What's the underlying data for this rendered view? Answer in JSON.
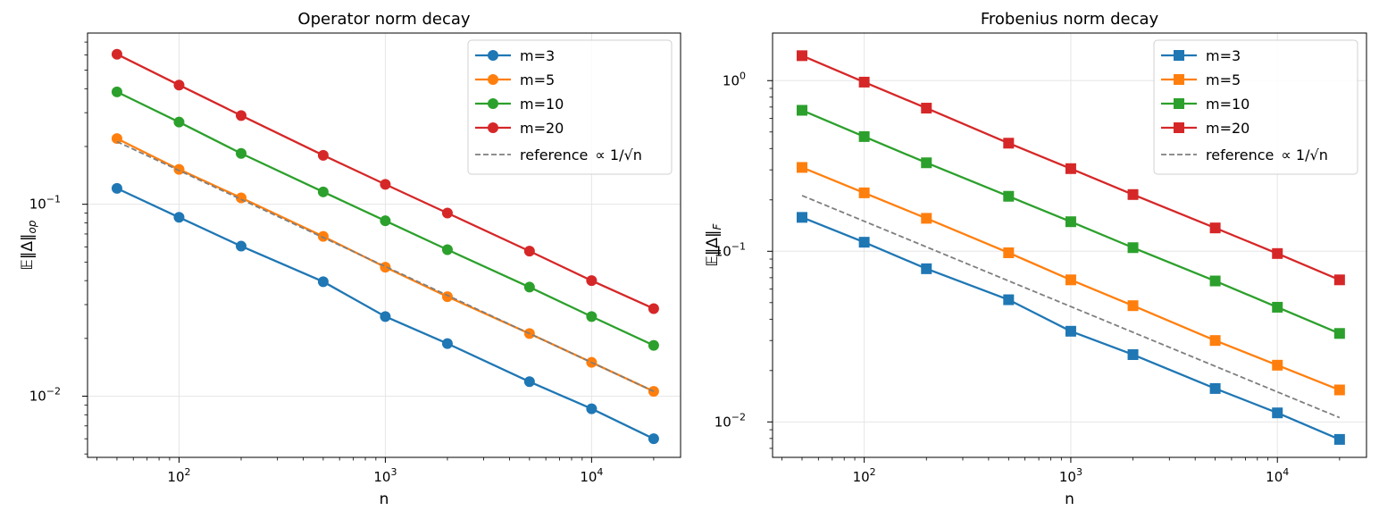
{
  "chart_data": [
    {
      "type": "line",
      "title": "Operator norm decay",
      "xlabel": "n",
      "ylabel": "𝔼‖Δ‖",
      "ylabel_sub": "op",
      "xscale": "log",
      "yscale": "log",
      "xlim": [
        36,
        27000
      ],
      "ylim": [
        0.0048,
        0.78
      ],
      "marker": "circle",
      "grid": true,
      "legend_position": "top-right",
      "x": [
        50,
        100,
        200,
        500,
        1000,
        2000,
        5000,
        10000,
        20000
      ],
      "series": [
        {
          "name": "m=3",
          "color": "#1f77b4",
          "values": [
            0.121,
            0.0855,
            0.0605,
            0.0395,
            0.026,
            0.0188,
            0.0119,
            0.0086,
            0.006
          ]
        },
        {
          "name": "m=5",
          "color": "#ff7f0e",
          "values": [
            0.22,
            0.152,
            0.108,
            0.068,
            0.047,
            0.033,
            0.0212,
            0.015,
            0.0106
          ]
        },
        {
          "name": "m=10",
          "color": "#2ca02c",
          "values": [
            0.385,
            0.268,
            0.184,
            0.116,
            0.082,
            0.058,
            0.037,
            0.026,
            0.0184
          ]
        },
        {
          "name": "m=20",
          "color": "#d62728",
          "values": [
            0.605,
            0.418,
            0.29,
            0.18,
            0.127,
            0.09,
            0.057,
            0.04,
            0.0286
          ]
        }
      ],
      "reference": {
        "name": "reference",
        "formula": "∝ 1/√n",
        "color": "#7f7f7f",
        "x": [
          50,
          20000
        ],
        "values": [
          0.2121,
          0.0106
        ]
      },
      "yticks": [
        {
          "value": 0.1,
          "base": "10",
          "exp": "−1"
        },
        {
          "value": 0.01,
          "base": "10",
          "exp": "−2"
        }
      ],
      "xticks": [
        {
          "value": 100,
          "base": "10",
          "exp": "2"
        },
        {
          "value": 1000,
          "base": "10",
          "exp": "3"
        },
        {
          "value": 10000,
          "base": "10",
          "exp": "4"
        }
      ]
    },
    {
      "type": "line",
      "title": "Frobenius norm decay",
      "xlabel": "n",
      "ylabel": "𝔼‖Δ‖",
      "ylabel_sub": "F",
      "xscale": "log",
      "yscale": "log",
      "xlim": [
        36,
        27000
      ],
      "ylim": [
        0.0062,
        1.9
      ],
      "marker": "square",
      "grid": true,
      "legend_position": "top-right",
      "x": [
        50,
        100,
        200,
        500,
        1000,
        2000,
        5000,
        10000,
        20000
      ],
      "series": [
        {
          "name": "m=3",
          "color": "#1f77b4",
          "values": [
            0.158,
            0.113,
            0.079,
            0.052,
            0.034,
            0.0248,
            0.0157,
            0.0113,
            0.0079
          ]
        },
        {
          "name": "m=5",
          "color": "#ff7f0e",
          "values": [
            0.31,
            0.22,
            0.156,
            0.098,
            0.068,
            0.048,
            0.03,
            0.0215,
            0.0154
          ]
        },
        {
          "name": "m=10",
          "color": "#2ca02c",
          "values": [
            0.67,
            0.47,
            0.33,
            0.21,
            0.149,
            0.105,
            0.067,
            0.047,
            0.033
          ]
        },
        {
          "name": "m=20",
          "color": "#d62728",
          "values": [
            1.4,
            0.98,
            0.69,
            0.43,
            0.305,
            0.215,
            0.137,
            0.097,
            0.068
          ]
        }
      ],
      "reference": {
        "name": "reference",
        "formula": "∝ 1/√n",
        "color": "#7f7f7f",
        "x": [
          50,
          20000
        ],
        "values": [
          0.2121,
          0.0106
        ]
      },
      "yticks": [
        {
          "value": 1,
          "base": "10",
          "exp": "0"
        },
        {
          "value": 0.1,
          "base": "10",
          "exp": "−1"
        },
        {
          "value": 0.01,
          "base": "10",
          "exp": "−2"
        }
      ],
      "xticks": [
        {
          "value": 100,
          "base": "10",
          "exp": "2"
        },
        {
          "value": 1000,
          "base": "10",
          "exp": "3"
        },
        {
          "value": 10000,
          "base": "10",
          "exp": "4"
        }
      ]
    }
  ]
}
